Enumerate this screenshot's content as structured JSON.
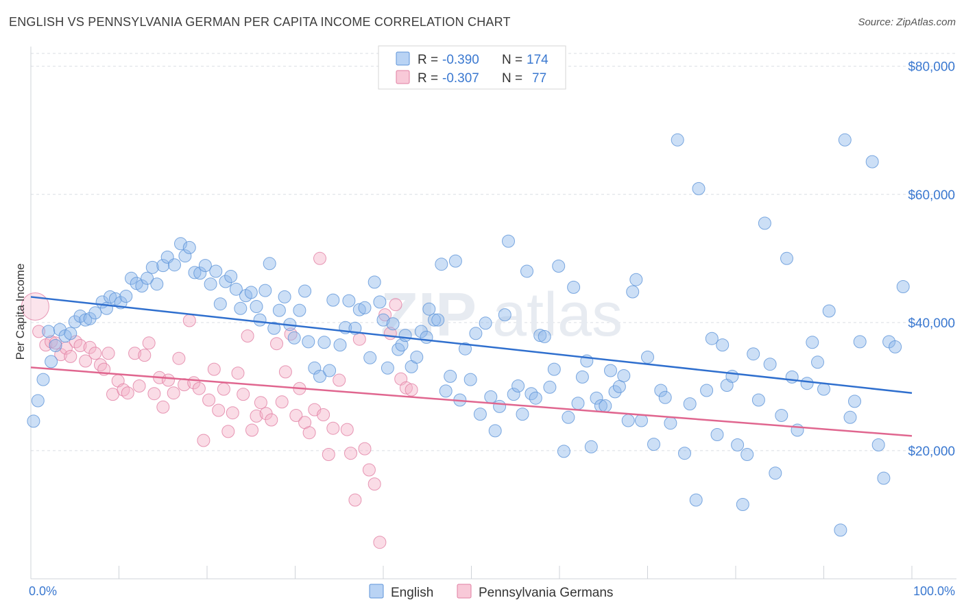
{
  "title": "ENGLISH VS PENNSYLVANIA GERMAN PER CAPITA INCOME CORRELATION CHART",
  "source": "Source: ZipAtlas.com",
  "watermark_a": "ZIP",
  "watermark_b": "atlas",
  "legend": {
    "r_label": "R =",
    "n_label": "N =",
    "rows": [
      {
        "r": "-0.390",
        "n": "174"
      },
      {
        "r": "-0.307",
        "n": "77"
      }
    ]
  },
  "chart_data": {
    "type": "scatter",
    "title": "ENGLISH VS PENNSYLVANIA GERMAN PER CAPITA INCOME CORRELATION CHART",
    "xlabel": "",
    "ylabel": "Per Capita Income",
    "xlim": [
      0,
      100
    ],
    "ylim": [
      0,
      82000
    ],
    "x_tick_labels": [
      "0.0%",
      "100.0%"
    ],
    "y_ticks": [
      20000,
      40000,
      60000,
      80000
    ],
    "y_tick_labels": [
      "$20,000",
      "$40,000",
      "$60,000",
      "$80,000"
    ],
    "grid": "horizontal dashed",
    "legend_position": "top-center",
    "series": [
      {
        "name": "English",
        "color": "#8fb8ea",
        "stroke": "#5d93d8",
        "trend": {
          "x": [
            0,
            100
          ],
          "y": [
            44000,
            29000
          ],
          "color": "#2f6fce"
        },
        "points": [
          [
            0.3,
            24600
          ],
          [
            0.8,
            27800
          ],
          [
            1.4,
            31100
          ],
          [
            2.0,
            38600
          ],
          [
            2.3,
            33900
          ],
          [
            2.8,
            36400
          ],
          [
            3.3,
            38900
          ],
          [
            3.9,
            37900
          ],
          [
            4.5,
            38300
          ],
          [
            5.0,
            40100
          ],
          [
            5.6,
            41000
          ],
          [
            6.2,
            40400
          ],
          [
            6.7,
            40600
          ],
          [
            7.3,
            41500
          ],
          [
            8.1,
            43200
          ],
          [
            8.6,
            42200
          ],
          [
            9.0,
            44000
          ],
          [
            9.6,
            43700
          ],
          [
            10.2,
            43100
          ],
          [
            10.8,
            44100
          ],
          [
            11.4,
            46900
          ],
          [
            12.0,
            46100
          ],
          [
            12.6,
            45700
          ],
          [
            13.2,
            46900
          ],
          [
            13.8,
            48600
          ],
          [
            14.3,
            46000
          ],
          [
            15.0,
            48900
          ],
          [
            15.5,
            50200
          ],
          [
            16.3,
            49000
          ],
          [
            17.0,
            52300
          ],
          [
            17.5,
            50400
          ],
          [
            18.0,
            51700
          ],
          [
            18.6,
            47800
          ],
          [
            19.2,
            47700
          ],
          [
            19.8,
            48900
          ],
          [
            20.4,
            46000
          ],
          [
            21.0,
            48000
          ],
          [
            21.5,
            42900
          ],
          [
            22.1,
            46400
          ],
          [
            22.7,
            47200
          ],
          [
            23.3,
            45200
          ],
          [
            23.8,
            42200
          ],
          [
            24.4,
            44200
          ],
          [
            25.0,
            44700
          ],
          [
            25.6,
            42500
          ],
          [
            26.0,
            40400
          ],
          [
            26.6,
            45000
          ],
          [
            27.1,
            49200
          ],
          [
            27.6,
            39100
          ],
          [
            28.2,
            41900
          ],
          [
            28.8,
            44000
          ],
          [
            29.4,
            39700
          ],
          [
            29.9,
            37600
          ],
          [
            30.5,
            41900
          ],
          [
            31.1,
            44900
          ],
          [
            31.5,
            37000
          ],
          [
            32.2,
            32900
          ],
          [
            32.8,
            31600
          ],
          [
            33.3,
            36900
          ],
          [
            33.9,
            32500
          ],
          [
            34.3,
            43500
          ],
          [
            35.1,
            36500
          ],
          [
            35.7,
            39200
          ],
          [
            36.1,
            43400
          ],
          [
            36.8,
            39100
          ],
          [
            37.3,
            42000
          ],
          [
            37.9,
            42300
          ],
          [
            38.5,
            34500
          ],
          [
            39.0,
            46300
          ],
          [
            39.6,
            43200
          ],
          [
            40.0,
            40400
          ],
          [
            40.5,
            32900
          ],
          [
            41.1,
            39800
          ],
          [
            41.7,
            35800
          ],
          [
            42.1,
            36500
          ],
          [
            42.5,
            38000
          ],
          [
            43.2,
            33100
          ],
          [
            43.8,
            34600
          ],
          [
            44.3,
            38600
          ],
          [
            44.9,
            37700
          ],
          [
            45.2,
            42100
          ],
          [
            45.8,
            40400
          ],
          [
            46.2,
            40400
          ],
          [
            46.6,
            49100
          ],
          [
            47.1,
            29300
          ],
          [
            47.6,
            31600
          ],
          [
            48.2,
            49600
          ],
          [
            48.7,
            27900
          ],
          [
            49.3,
            35900
          ],
          [
            49.9,
            31100
          ],
          [
            50.5,
            38300
          ],
          [
            51.0,
            25700
          ],
          [
            51.6,
            39900
          ],
          [
            52.2,
            28400
          ],
          [
            52.7,
            23100
          ],
          [
            53.2,
            26900
          ],
          [
            53.8,
            41200
          ],
          [
            54.2,
            52700
          ],
          [
            54.8,
            28800
          ],
          [
            55.3,
            30100
          ],
          [
            55.8,
            25700
          ],
          [
            56.3,
            48000
          ],
          [
            56.8,
            28900
          ],
          [
            57.3,
            28200
          ],
          [
            57.8,
            38000
          ],
          [
            58.3,
            37800
          ],
          [
            58.9,
            29900
          ],
          [
            59.4,
            32700
          ],
          [
            59.9,
            48800
          ],
          [
            60.5,
            19900
          ],
          [
            61.0,
            25200
          ],
          [
            61.6,
            45500
          ],
          [
            62.1,
            27400
          ],
          [
            62.6,
            31500
          ],
          [
            63.1,
            34000
          ],
          [
            63.6,
            20600
          ],
          [
            64.2,
            28200
          ],
          [
            64.7,
            27000
          ],
          [
            65.2,
            27000
          ],
          [
            65.8,
            32500
          ],
          [
            66.3,
            29200
          ],
          [
            66.8,
            30000
          ],
          [
            67.3,
            31700
          ],
          [
            67.8,
            24700
          ],
          [
            68.3,
            44800
          ],
          [
            68.7,
            46700
          ],
          [
            69.3,
            24700
          ],
          [
            70.0,
            34600
          ],
          [
            70.7,
            21000
          ],
          [
            71.5,
            29400
          ],
          [
            72.0,
            28300
          ],
          [
            72.6,
            24300
          ],
          [
            73.4,
            68500
          ],
          [
            74.2,
            19600
          ],
          [
            74.8,
            27300
          ],
          [
            75.5,
            12300
          ],
          [
            75.8,
            60900
          ],
          [
            76.7,
            29400
          ],
          [
            77.3,
            37500
          ],
          [
            77.9,
            22500
          ],
          [
            78.5,
            36500
          ],
          [
            79.0,
            30200
          ],
          [
            79.6,
            31600
          ],
          [
            80.2,
            20900
          ],
          [
            80.8,
            11600
          ],
          [
            81.3,
            19400
          ],
          [
            82.0,
            35100
          ],
          [
            82.6,
            27900
          ],
          [
            83.3,
            55500
          ],
          [
            83.9,
            33500
          ],
          [
            84.5,
            16500
          ],
          [
            85.2,
            25500
          ],
          [
            85.8,
            50000
          ],
          [
            86.4,
            31500
          ],
          [
            87.0,
            23200
          ],
          [
            88.1,
            30500
          ],
          [
            88.7,
            36900
          ],
          [
            89.3,
            33800
          ],
          [
            90.0,
            29600
          ],
          [
            90.6,
            41800
          ],
          [
            91.9,
            7600
          ],
          [
            92.4,
            68500
          ],
          [
            93.0,
            25200
          ],
          [
            93.5,
            27700
          ],
          [
            94.1,
            37000
          ],
          [
            95.5,
            65100
          ],
          [
            96.2,
            20900
          ],
          [
            96.8,
            15700
          ],
          [
            97.4,
            37000
          ],
          [
            98.1,
            36200
          ],
          [
            99.0,
            45600
          ]
        ]
      },
      {
        "name": "Pennsylvania Germans",
        "color": "#f3b1c8",
        "stroke": "#e17ea2",
        "trend": {
          "x": [
            0,
            100
          ],
          "y": [
            33000,
            22300
          ],
          "color": "#e0668f"
        },
        "points": [
          [
            0.5,
            42500
          ],
          [
            0.9,
            38600
          ],
          [
            1.7,
            36500
          ],
          [
            2.3,
            37000
          ],
          [
            2.8,
            36800
          ],
          [
            3.4,
            35000
          ],
          [
            4.0,
            36000
          ],
          [
            4.5,
            34700
          ],
          [
            5.1,
            37000
          ],
          [
            5.6,
            36400
          ],
          [
            6.2,
            34000
          ],
          [
            6.7,
            36100
          ],
          [
            7.3,
            35200
          ],
          [
            7.9,
            33400
          ],
          [
            8.3,
            32700
          ],
          [
            8.8,
            35200
          ],
          [
            9.3,
            28800
          ],
          [
            9.9,
            30900
          ],
          [
            10.5,
            29500
          ],
          [
            11.0,
            29000
          ],
          [
            11.8,
            35200
          ],
          [
            12.3,
            30100
          ],
          [
            12.9,
            34900
          ],
          [
            13.4,
            36800
          ],
          [
            14.0,
            28900
          ],
          [
            14.6,
            31400
          ],
          [
            15.0,
            26800
          ],
          [
            15.6,
            31000
          ],
          [
            16.2,
            29000
          ],
          [
            16.8,
            34400
          ],
          [
            17.4,
            30300
          ],
          [
            18.0,
            40300
          ],
          [
            18.5,
            30600
          ],
          [
            19.1,
            29700
          ],
          [
            19.6,
            21600
          ],
          [
            20.2,
            27900
          ],
          [
            20.8,
            32700
          ],
          [
            21.3,
            26300
          ],
          [
            21.9,
            29600
          ],
          [
            22.4,
            23000
          ],
          [
            22.9,
            25900
          ],
          [
            23.5,
            32100
          ],
          [
            24.1,
            28800
          ],
          [
            24.6,
            37900
          ],
          [
            25.1,
            23200
          ],
          [
            25.6,
            25400
          ],
          [
            26.1,
            27500
          ],
          [
            26.7,
            25800
          ],
          [
            27.3,
            24800
          ],
          [
            27.9,
            36700
          ],
          [
            28.5,
            27600
          ],
          [
            28.9,
            32300
          ],
          [
            29.5,
            38200
          ],
          [
            30.1,
            25500
          ],
          [
            30.5,
            29700
          ],
          [
            31.1,
            24400
          ],
          [
            31.6,
            22800
          ],
          [
            32.2,
            26400
          ],
          [
            32.8,
            50000
          ],
          [
            33.2,
            25600
          ],
          [
            33.8,
            19400
          ],
          [
            34.3,
            23500
          ],
          [
            35.0,
            31000
          ],
          [
            35.9,
            23300
          ],
          [
            36.3,
            19600
          ],
          [
            36.8,
            12300
          ],
          [
            37.3,
            37400
          ],
          [
            37.9,
            20300
          ],
          [
            38.4,
            17000
          ],
          [
            39.0,
            14800
          ],
          [
            39.6,
            5700
          ],
          [
            40.2,
            41200
          ],
          [
            40.8,
            38300
          ],
          [
            41.4,
            42800
          ],
          [
            42.0,
            31200
          ],
          [
            42.6,
            29800
          ],
          [
            43.2,
            29500
          ]
        ]
      }
    ]
  },
  "bottom_legend": [
    "English",
    "Pennsylvania Germans"
  ]
}
